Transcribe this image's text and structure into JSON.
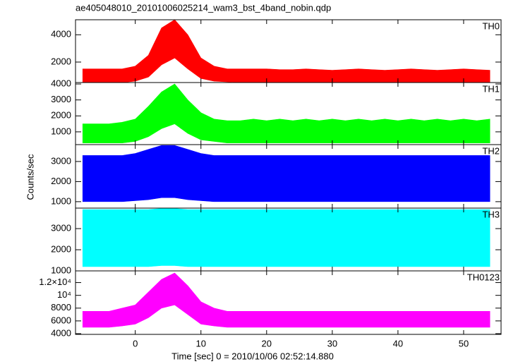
{
  "chart_data": {
    "type": "line",
    "title": "ae405048010_20101006025214_wam3_bst_4band_nobin.qdp",
    "xlabel": "Time [sec] 0 = 2010/10/06 02:52:14.880",
    "ylabel": "Counts/sec",
    "xlim": [
      -9.1,
      55.7
    ],
    "xticks": [
      0,
      10,
      20,
      30,
      40,
      50
    ],
    "x": [
      -8,
      -6,
      -4,
      -2,
      0,
      2,
      4,
      6,
      8,
      10,
      12,
      14,
      16,
      18,
      20,
      22,
      24,
      26,
      28,
      30,
      32,
      34,
      36,
      38,
      40,
      42,
      44,
      46,
      48,
      50,
      52,
      54
    ],
    "panels": [
      {
        "name": "TH0",
        "color": "#ff0000",
        "ylim": [
          500,
          5100
        ],
        "yticks": [
          2000,
          4000
        ],
        "high": [
          1500,
          1500,
          1500,
          1500,
          1700,
          2500,
          4500,
          5100,
          4000,
          2300,
          1700,
          1500,
          1500,
          1500,
          1500,
          1450,
          1450,
          1500,
          1450,
          1400,
          1450,
          1500,
          1450,
          1400,
          1450,
          1500,
          1450,
          1400,
          1450,
          1500,
          1450,
          1400
        ],
        "low": [
          500,
          500,
          500,
          500,
          600,
          900,
          1800,
          2300,
          1500,
          800,
          600,
          550,
          500,
          500,
          500,
          500,
          500,
          500,
          500,
          500,
          500,
          500,
          500,
          500,
          500,
          500,
          500,
          500,
          500,
          500,
          500,
          500
        ]
      },
      {
        "name": "TH1",
        "color": "#00ff00",
        "ylim": [
          200,
          4090
        ],
        "yticks": [
          1000,
          2000,
          3000,
          4000
        ],
        "high": [
          1500,
          1500,
          1500,
          1600,
          1800,
          2600,
          3500,
          4000,
          3000,
          2200,
          1800,
          1700,
          1700,
          1800,
          1700,
          1800,
          1700,
          1800,
          1700,
          1800,
          1700,
          1800,
          1700,
          1800,
          1700,
          1800,
          1700,
          1800,
          1700,
          1800,
          1700,
          1800
        ],
        "low": [
          300,
          300,
          300,
          300,
          400,
          700,
          1200,
          1500,
          900,
          500,
          400,
          300,
          300,
          300,
          300,
          300,
          300,
          300,
          300,
          300,
          300,
          300,
          300,
          300,
          300,
          300,
          300,
          300,
          300,
          300,
          300,
          300
        ]
      },
      {
        "name": "TH2",
        "color": "#0000ff",
        "ylim": [
          680,
          3840
        ],
        "yticks": [
          1000,
          2000,
          3000
        ],
        "high": [
          3300,
          3300,
          3300,
          3300,
          3400,
          3600,
          3800,
          3800,
          3600,
          3400,
          3300,
          3300,
          3300,
          3300,
          3300,
          3300,
          3300,
          3300,
          3300,
          3300,
          3300,
          3300,
          3300,
          3300,
          3300,
          3300,
          3300,
          3300,
          3300,
          3300,
          3300,
          3300
        ],
        "low": [
          1000,
          1000,
          1000,
          1000,
          1050,
          1100,
          1200,
          1200,
          1100,
          1050,
          1000,
          1000,
          1000,
          1000,
          1000,
          1000,
          1000,
          1000,
          1000,
          1000,
          1000,
          1000,
          1000,
          1000,
          1000,
          1000,
          1000,
          1000,
          1000,
          1000,
          1000,
          1000
        ]
      },
      {
        "name": "TH3",
        "color": "#00ffff",
        "ylim": [
          1000,
          3970
        ],
        "yticks": [
          1000,
          2000,
          3000
        ],
        "high": [
          3900,
          3900,
          3900,
          3900,
          3900,
          3900,
          3950,
          3950,
          3900,
          3900,
          3900,
          3900,
          3900,
          3900,
          3900,
          3900,
          3900,
          3900,
          3900,
          3900,
          3900,
          3900,
          3900,
          3900,
          3900,
          3900,
          3900,
          3900,
          3900,
          3900,
          3900,
          3900
        ],
        "low": [
          1200,
          1200,
          1200,
          1200,
          1200,
          1200,
          1250,
          1250,
          1200,
          1200,
          1200,
          1200,
          1200,
          1200,
          1200,
          1200,
          1200,
          1200,
          1200,
          1200,
          1200,
          1200,
          1200,
          1200,
          1200,
          1200,
          1200,
          1200,
          1200,
          1200,
          1200,
          1200
        ]
      },
      {
        "name": "TH0123",
        "color": "#ff00ff",
        "ylim": [
          3890,
          13830
        ],
        "yticks": [
          4000,
          6000,
          8000,
          {
            "value": 10000,
            "label": "10⁴"
          },
          {
            "value": 12000,
            "label": "1.2×10⁴"
          }
        ],
        "high": [
          7500,
          7500,
          7500,
          8000,
          8500,
          10500,
          12500,
          13500,
          11500,
          9000,
          8000,
          7500,
          7500,
          7500,
          7500,
          7500,
          7500,
          7500,
          7500,
          7500,
          7500,
          7500,
          7500,
          7500,
          7500,
          7500,
          7500,
          7500,
          7500,
          7500,
          7500,
          7500
        ],
        "low": [
          5000,
          5000,
          5000,
          5200,
          5500,
          6500,
          8000,
          8500,
          7000,
          5500,
          5200,
          5000,
          5000,
          5000,
          5000,
          5000,
          5000,
          5000,
          5000,
          5000,
          5000,
          5000,
          5000,
          5000,
          5000,
          5000,
          5000,
          5000,
          5000,
          5000,
          5000,
          5000
        ]
      }
    ]
  }
}
